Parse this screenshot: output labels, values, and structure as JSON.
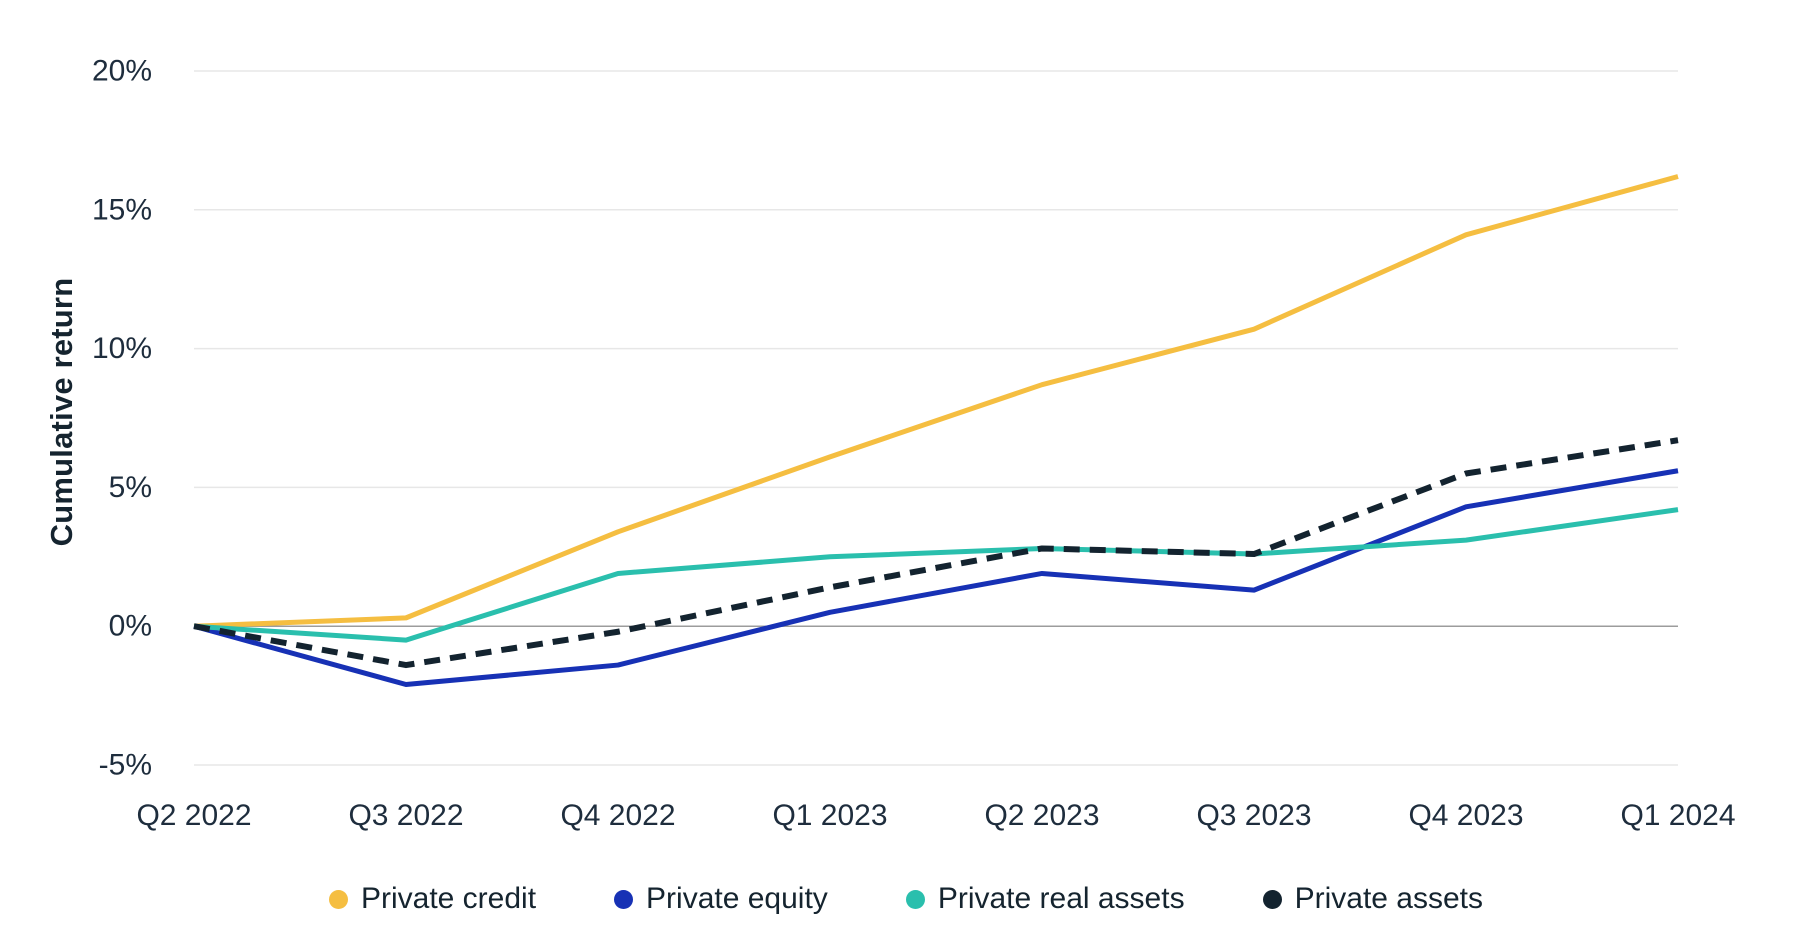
{
  "chart_data": {
    "type": "line",
    "title": "",
    "xlabel": "",
    "ylabel": "Cumulative return",
    "categories": [
      "Q2 2022",
      "Q3 2022",
      "Q4 2022",
      "Q1 2023",
      "Q2 2023",
      "Q3 2023",
      "Q4 2023",
      "Q1 2024"
    ],
    "series": [
      {
        "name": "Private credit",
        "color": "#F5BE41",
        "style": "solid",
        "values": [
          0,
          0.3,
          3.4,
          6.1,
          8.7,
          10.7,
          14.1,
          16.2
        ]
      },
      {
        "name": "Private equity",
        "color": "#1731B5",
        "style": "solid",
        "values": [
          0,
          -2.1,
          -1.4,
          0.5,
          1.9,
          1.3,
          4.3,
          5.6
        ]
      },
      {
        "name": "Private real assets",
        "color": "#2ABFAD",
        "style": "solid",
        "values": [
          0,
          -0.5,
          1.9,
          2.5,
          2.8,
          2.6,
          3.1,
          4.2
        ]
      },
      {
        "name": "Private assets",
        "color": "#13232F",
        "style": "dashed",
        "values": [
          0,
          -1.4,
          -0.2,
          1.4,
          2.8,
          2.6,
          5.5,
          6.7
        ]
      }
    ],
    "y_axis": {
      "min": -5,
      "max": 20,
      "tick_values": [
        20,
        15,
        10,
        5,
        0,
        -5
      ],
      "tick_labels": [
        "20%",
        "15%",
        "10%",
        "5%",
        "0%",
        "-5%"
      ]
    },
    "grid": "horizontal",
    "legend_position": "bottom",
    "colors": {
      "grid_line": "#E7E7E7",
      "zero_line": "#9C9C9C",
      "tick_text": "#1E2D3D",
      "background": "#FFFFFF"
    }
  }
}
